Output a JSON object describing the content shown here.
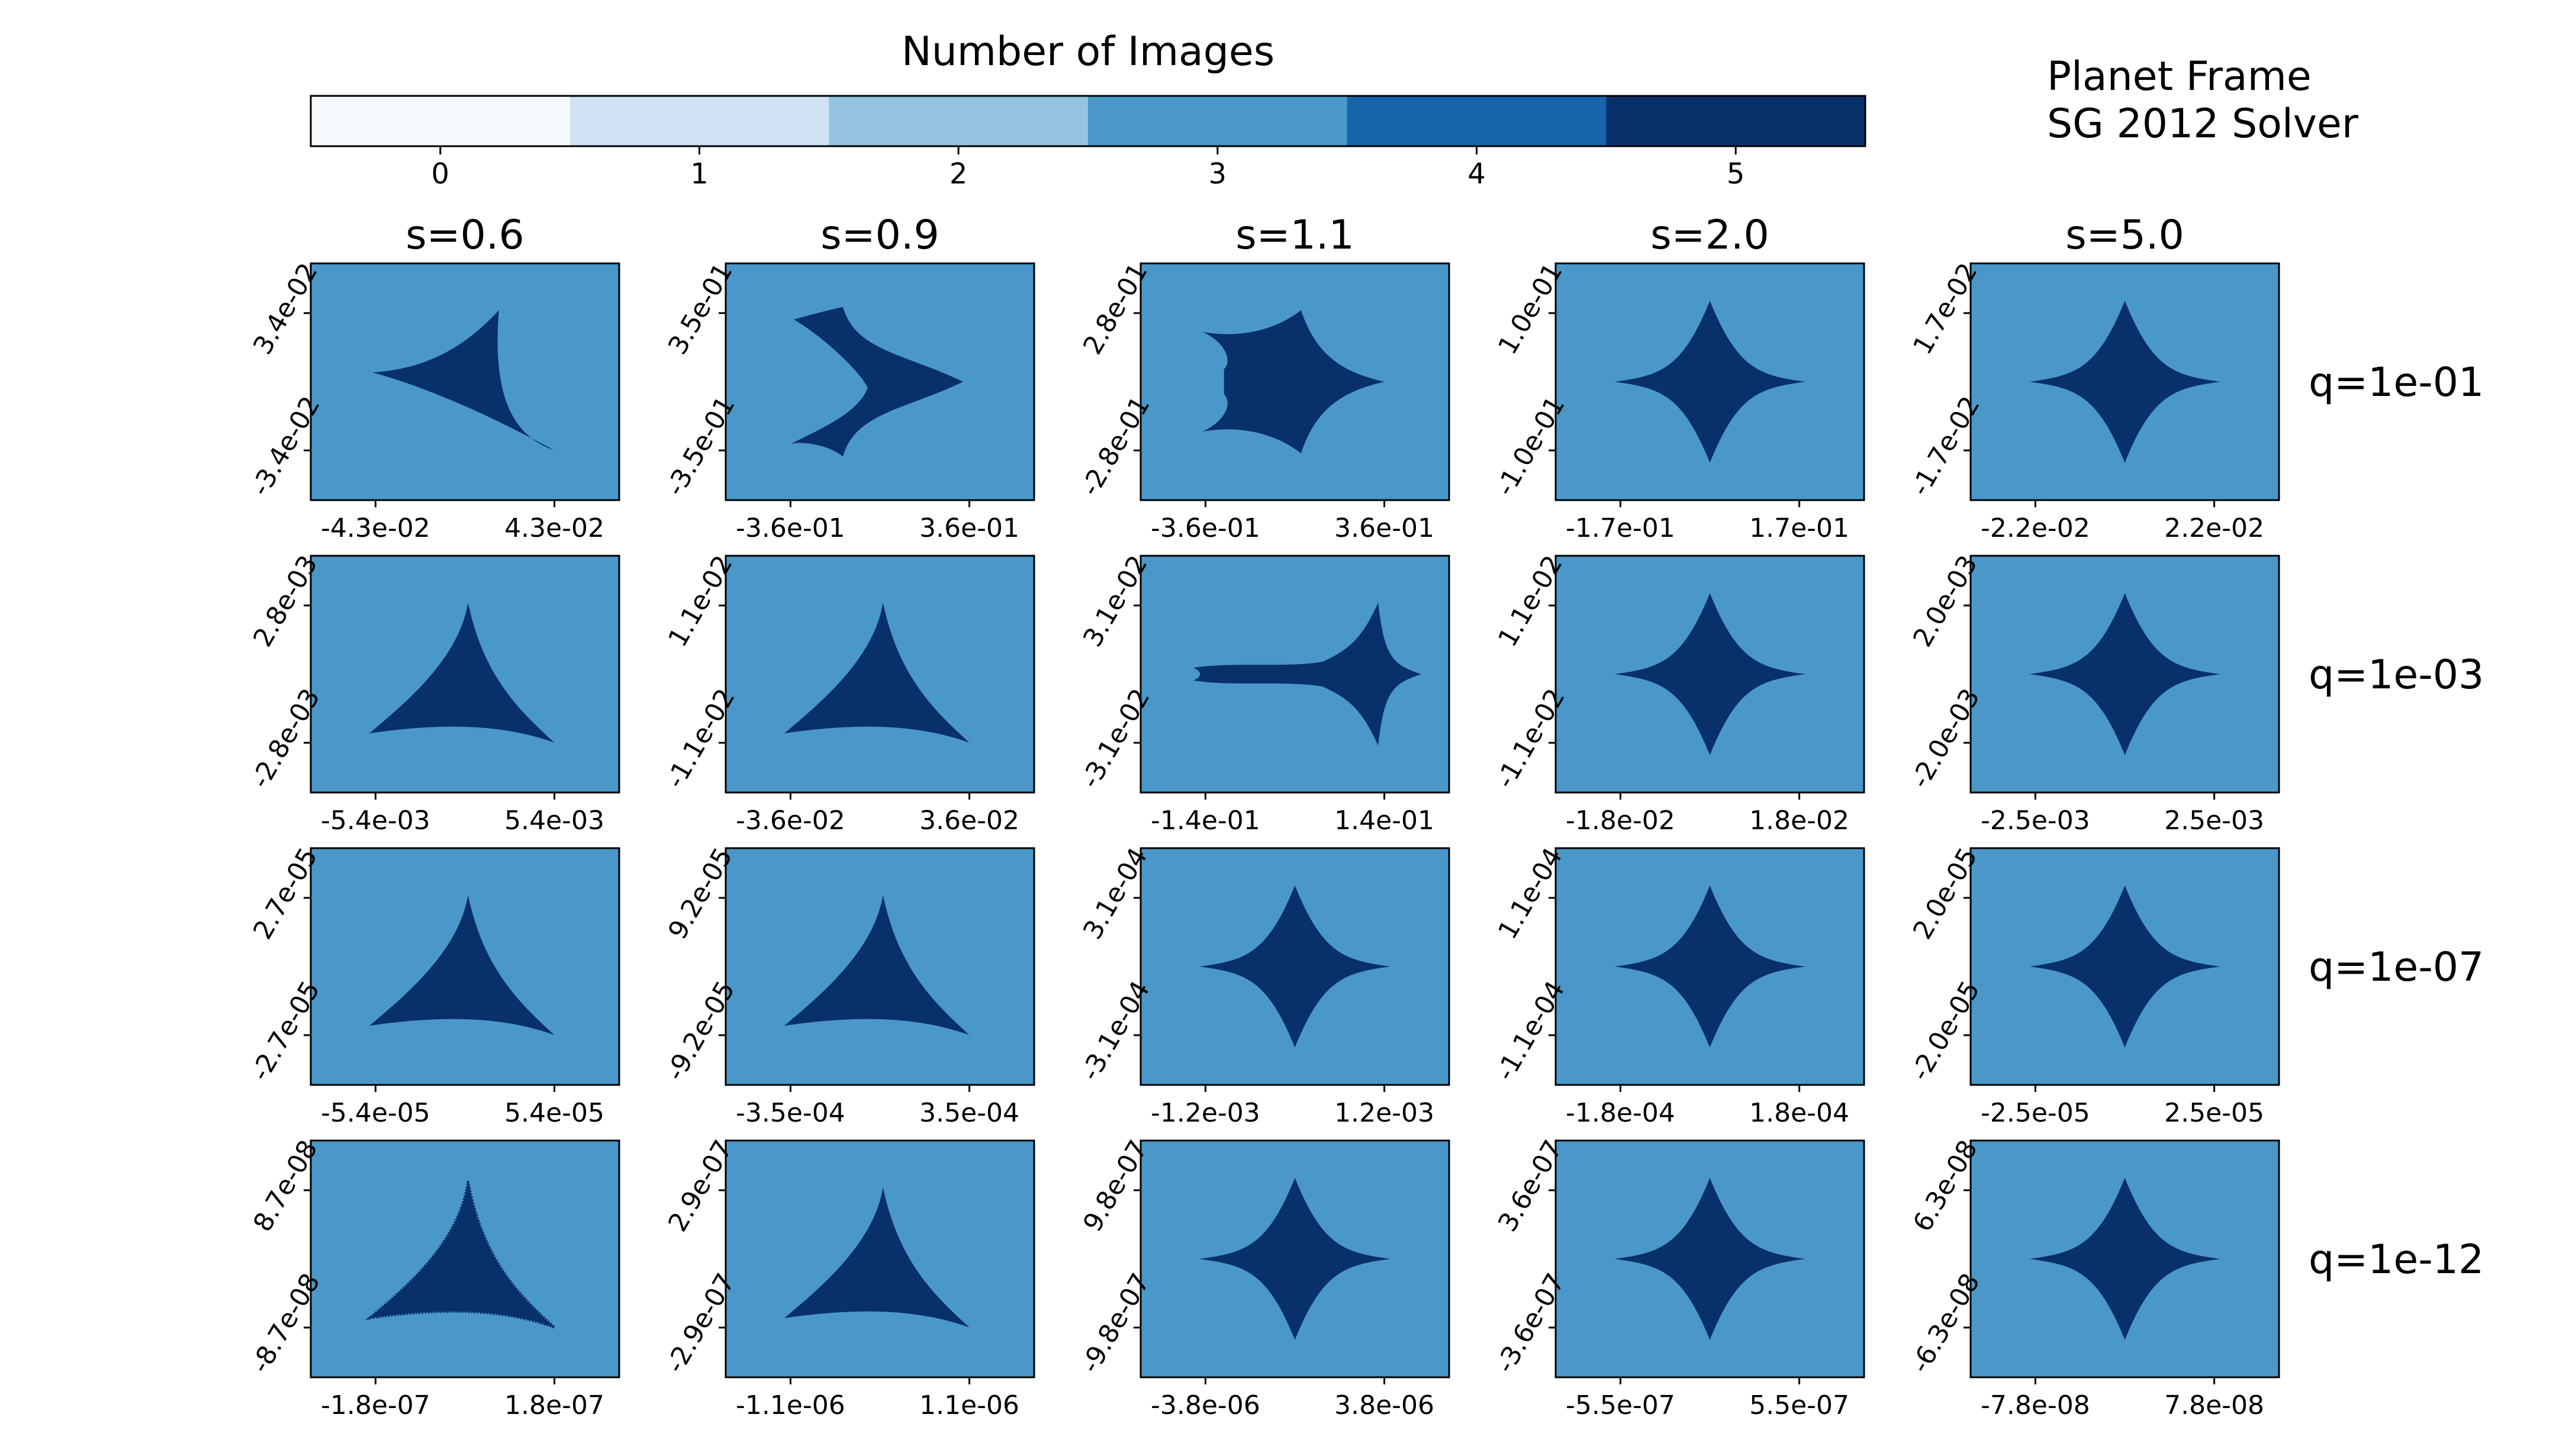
{
  "colorbar": {
    "title": "Number of Images",
    "levels": [
      0,
      1,
      2,
      3,
      4,
      5
    ],
    "tick_labels": [
      "0",
      "1",
      "2",
      "3",
      "4",
      "5"
    ],
    "colors": [
      "#f7fbff",
      "#cfe1f2",
      "#94c4df",
      "#4a98c9",
      "#1764ab",
      "#08306b"
    ]
  },
  "annotation": {
    "line1": "Planet Frame",
    "line2": "SG 2012 Solver"
  },
  "chart_data": {
    "type": "heatmap",
    "title": "Number of Images",
    "columns": [
      "s=0.6",
      "s=0.9",
      "s=1.1",
      "s=2.0",
      "s=5.0"
    ],
    "rows": [
      "q=1e-01",
      "q=1e-03",
      "q=1e-07",
      "q=1e-12"
    ],
    "background_level": 3,
    "caustic_level": 5,
    "panels": [
      [
        {
          "shape": "tri-right",
          "xticks": [
            "-4.3e-02",
            "4.3e-02"
          ],
          "yticks": [
            "3.4e-02",
            "-3.4e-02"
          ]
        },
        {
          "shape": "wide-two",
          "xticks": [
            "-3.6e-01",
            "3.6e-01"
          ],
          "yticks": [
            "3.5e-01",
            "-3.5e-01"
          ]
        },
        {
          "shape": "wide-notch",
          "xticks": [
            "-3.6e-01",
            "3.6e-01"
          ],
          "yticks": [
            "2.8e-01",
            "-2.8e-01"
          ]
        },
        {
          "shape": "astroid",
          "xticks": [
            "-1.7e-01",
            "1.7e-01"
          ],
          "yticks": [
            "1.0e-01",
            "-1.0e-01"
          ]
        },
        {
          "shape": "astroid",
          "xticks": [
            "-2.2e-02",
            "2.2e-02"
          ],
          "yticks": [
            "1.7e-02",
            "-1.7e-02"
          ]
        }
      ],
      [
        {
          "shape": "tri",
          "xticks": [
            "-5.4e-03",
            "5.4e-03"
          ],
          "yticks": [
            "2.8e-03",
            "-2.8e-03"
          ]
        },
        {
          "shape": "tri",
          "xticks": [
            "-3.6e-02",
            "3.6e-02"
          ],
          "yticks": [
            "1.1e-02",
            "-1.1e-02"
          ]
        },
        {
          "shape": "astroid-tail",
          "xticks": [
            "-1.4e-01",
            "1.4e-01"
          ],
          "yticks": [
            "3.1e-02",
            "-3.1e-02"
          ]
        },
        {
          "shape": "astroid",
          "xticks": [
            "-1.8e-02",
            "1.8e-02"
          ],
          "yticks": [
            "1.1e-02",
            "-1.1e-02"
          ]
        },
        {
          "shape": "astroid",
          "xticks": [
            "-2.5e-03",
            "2.5e-03"
          ],
          "yticks": [
            "2.0e-03",
            "-2.0e-03"
          ]
        }
      ],
      [
        {
          "shape": "tri",
          "xticks": [
            "-5.4e-05",
            "5.4e-05"
          ],
          "yticks": [
            "2.7e-05",
            "-2.7e-05"
          ]
        },
        {
          "shape": "tri",
          "xticks": [
            "-3.5e-04",
            "3.5e-04"
          ],
          "yticks": [
            "9.2e-05",
            "-9.2e-05"
          ]
        },
        {
          "shape": "astroid",
          "xticks": [
            "-1.2e-03",
            "1.2e-03"
          ],
          "yticks": [
            "3.1e-04",
            "-3.1e-04"
          ]
        },
        {
          "shape": "astroid",
          "xticks": [
            "-1.8e-04",
            "1.8e-04"
          ],
          "yticks": [
            "1.1e-04",
            "-1.1e-04"
          ]
        },
        {
          "shape": "astroid",
          "xticks": [
            "-2.5e-05",
            "2.5e-05"
          ],
          "yticks": [
            "2.0e-05",
            "-2.0e-05"
          ]
        }
      ],
      [
        {
          "shape": "tri-noisy",
          "xticks": [
            "-1.8e-07",
            "1.8e-07"
          ],
          "yticks": [
            "8.7e-08",
            "-8.7e-08"
          ]
        },
        {
          "shape": "tri",
          "xticks": [
            "-1.1e-06",
            "1.1e-06"
          ],
          "yticks": [
            "2.9e-07",
            "-2.9e-07"
          ]
        },
        {
          "shape": "astroid",
          "xticks": [
            "-3.8e-06",
            "3.8e-06"
          ],
          "yticks": [
            "9.8e-07",
            "-9.8e-07"
          ]
        },
        {
          "shape": "astroid",
          "xticks": [
            "-5.5e-07",
            "5.5e-07"
          ],
          "yticks": [
            "3.6e-07",
            "-3.6e-07"
          ]
        },
        {
          "shape": "astroid",
          "xticks": [
            "-7.8e-08",
            "7.8e-08"
          ],
          "yticks": [
            "6.3e-08",
            "-6.3e-08"
          ]
        }
      ]
    ]
  }
}
